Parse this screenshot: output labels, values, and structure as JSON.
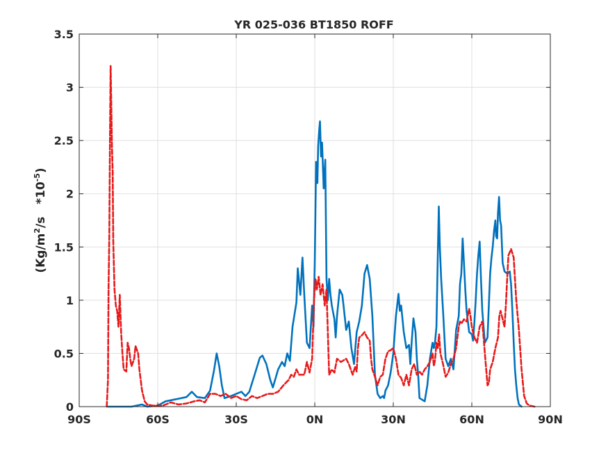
{
  "chart_data": {
    "type": "line",
    "title": "YR 025-036 BT1850 ROFF",
    "xlabel": "",
    "ylabel": "(Kg/m²/s   *10⁻⁵)",
    "ylabel_parts": {
      "a": "(Kg/m",
      "b": "2",
      "c": "/s   *10",
      "d": "-5",
      "e": ")"
    },
    "xlim": [
      -90,
      90
    ],
    "ylim": [
      0,
      3.5
    ],
    "xticks": [
      -90,
      -60,
      -30,
      0,
      30,
      60,
      90
    ],
    "xtick_labels": [
      "90S",
      "60S",
      "30S",
      "0N",
      "30N",
      "60N",
      "90N"
    ],
    "yticks": [
      0,
      0.5,
      1,
      1.5,
      2,
      2.5,
      3,
      3.5
    ],
    "ytick_labels": [
      "0",
      "0.5",
      "1",
      "1.5",
      "2",
      "2.5",
      "3",
      "3.5"
    ],
    "grid": true,
    "series": [
      {
        "color": "#0072BD",
        "dash": "solid",
        "points": [
          [
            -79,
            0
          ],
          [
            -70,
            0
          ],
          [
            -66,
            0.02
          ],
          [
            -64,
            0
          ],
          [
            -60,
            0.01
          ],
          [
            -57,
            0.05
          ],
          [
            -53,
            0.07
          ],
          [
            -49,
            0.09
          ],
          [
            -47,
            0.14
          ],
          [
            -45,
            0.09
          ],
          [
            -42,
            0.08
          ],
          [
            -40,
            0.15
          ],
          [
            -38.5,
            0.34
          ],
          [
            -37.5,
            0.5
          ],
          [
            -36.5,
            0.38
          ],
          [
            -35.5,
            0.2
          ],
          [
            -34.5,
            0.08
          ],
          [
            -32,
            0.1
          ],
          [
            -30,
            0.12
          ],
          [
            -28,
            0.14
          ],
          [
            -26.5,
            0.1
          ],
          [
            -25,
            0.14
          ],
          [
            -23,
            0.3
          ],
          [
            -21,
            0.46
          ],
          [
            -20,
            0.48
          ],
          [
            -18.5,
            0.4
          ],
          [
            -17,
            0.25
          ],
          [
            -16,
            0.18
          ],
          [
            -14,
            0.35
          ],
          [
            -12.5,
            0.42
          ],
          [
            -11.5,
            0.38
          ],
          [
            -10.5,
            0.5
          ],
          [
            -9.5,
            0.43
          ],
          [
            -8.5,
            0.75
          ],
          [
            -7,
            0.98
          ],
          [
            -6.5,
            1.3
          ],
          [
            -5.5,
            1.05
          ],
          [
            -4.7,
            1.4
          ],
          [
            -4,
            1.05
          ],
          [
            -3,
            0.6
          ],
          [
            -2,
            0.55
          ],
          [
            -1,
            0.95
          ],
          [
            -0.5,
            0.75
          ],
          [
            0,
            1.35
          ],
          [
            0.5,
            2.3
          ],
          [
            1,
            2.1
          ],
          [
            1.3,
            2.45
          ],
          [
            1.7,
            2.6
          ],
          [
            2,
            2.68
          ],
          [
            2.4,
            2.35
          ],
          [
            2.8,
            2.48
          ],
          [
            3.4,
            2.05
          ],
          [
            4,
            2.32
          ],
          [
            4.5,
            1.2
          ],
          [
            5,
            1.0
          ],
          [
            5.5,
            1.2
          ],
          [
            6,
            1.05
          ],
          [
            6.5,
            0.95
          ],
          [
            7.5,
            0.82
          ],
          [
            8,
            0.65
          ],
          [
            8.5,
            0.85
          ],
          [
            9.5,
            1.1
          ],
          [
            10.5,
            1.05
          ],
          [
            11,
            0.95
          ],
          [
            12,
            0.72
          ],
          [
            13,
            0.8
          ],
          [
            14,
            0.55
          ],
          [
            15,
            0.4
          ],
          [
            16,
            0.7
          ],
          [
            17,
            0.8
          ],
          [
            18,
            0.95
          ],
          [
            19,
            1.25
          ],
          [
            20,
            1.33
          ],
          [
            21,
            1.2
          ],
          [
            22,
            0.85
          ],
          [
            23,
            0.3
          ],
          [
            24,
            0.12
          ],
          [
            25,
            0.08
          ],
          [
            26,
            0.1
          ],
          [
            26.5,
            0.08
          ],
          [
            27,
            0.15
          ],
          [
            28,
            0.2
          ],
          [
            29,
            0.32
          ],
          [
            30,
            0.5
          ],
          [
            31,
            0.85
          ],
          [
            32,
            1.06
          ],
          [
            32.5,
            0.9
          ],
          [
            33,
            0.95
          ],
          [
            34,
            0.7
          ],
          [
            35,
            0.55
          ],
          [
            36,
            0.58
          ],
          [
            36.5,
            0.4
          ],
          [
            37,
            0.6
          ],
          [
            37.7,
            0.83
          ],
          [
            38.5,
            0.7
          ],
          [
            39,
            0.45
          ],
          [
            39.5,
            0.3
          ],
          [
            40,
            0.08
          ],
          [
            42,
            0.05
          ],
          [
            43,
            0.2
          ],
          [
            44,
            0.45
          ],
          [
            45,
            0.6
          ],
          [
            45.5,
            0.55
          ],
          [
            46,
            0.62
          ],
          [
            46.5,
            0.75
          ],
          [
            47,
            1.4
          ],
          [
            47.4,
            1.88
          ],
          [
            47.8,
            1.5
          ],
          [
            48.3,
            1.2
          ],
          [
            49,
            0.9
          ],
          [
            50,
            0.45
          ],
          [
            51,
            0.38
          ],
          [
            52,
            0.45
          ],
          [
            53,
            0.35
          ],
          [
            54,
            0.72
          ],
          [
            55,
            0.85
          ],
          [
            55.5,
            1.15
          ],
          [
            56,
            1.25
          ],
          [
            56.5,
            1.58
          ],
          [
            57,
            1.35
          ],
          [
            57.5,
            1.1
          ],
          [
            58,
            0.9
          ],
          [
            59,
            0.7
          ],
          [
            60,
            0.68
          ],
          [
            60.5,
            0.62
          ],
          [
            61,
            0.8
          ],
          [
            61.5,
            1.0
          ],
          [
            62,
            1.25
          ],
          [
            62.5,
            1.42
          ],
          [
            63,
            1.55
          ],
          [
            63.5,
            1.2
          ],
          [
            64,
            0.9
          ],
          [
            65,
            0.6
          ],
          [
            66,
            0.65
          ],
          [
            66.5,
            0.95
          ],
          [
            67,
            1.25
          ],
          [
            67.5,
            1.4
          ],
          [
            68,
            1.5
          ],
          [
            68.5,
            1.65
          ],
          [
            69,
            1.75
          ],
          [
            69.3,
            1.6
          ],
          [
            69.7,
            1.58
          ],
          [
            70,
            1.82
          ],
          [
            70.4,
            1.97
          ],
          [
            70.8,
            1.75
          ],
          [
            71.2,
            1.7
          ],
          [
            71.8,
            1.35
          ],
          [
            72.5,
            1.27
          ],
          [
            73.5,
            1.25
          ],
          [
            74.5,
            1.27
          ],
          [
            75,
            1.15
          ],
          [
            75.5,
            0.9
          ],
          [
            76,
            0.6
          ],
          [
            76.5,
            0.35
          ],
          [
            77,
            0.2
          ],
          [
            77.5,
            0.08
          ],
          [
            78,
            0.02
          ],
          [
            79,
            0
          ]
        ]
      },
      {
        "color": "#E61A1A",
        "dash": "dashed",
        "points": [
          [
            -79.5,
            0
          ],
          [
            -79,
            0.25
          ],
          [
            -78.8,
            1.1
          ],
          [
            -78.5,
            1.6
          ],
          [
            -78.2,
            2.6
          ],
          [
            -78,
            3.2
          ],
          [
            -77.8,
            2.9
          ],
          [
            -77.5,
            2.45
          ],
          [
            -77.2,
            2.2
          ],
          [
            -77,
            1.55
          ],
          [
            -76.5,
            1.1
          ],
          [
            -76,
            0.95
          ],
          [
            -75.5,
            0.9
          ],
          [
            -75,
            0.75
          ],
          [
            -74.5,
            1.05
          ],
          [
            -74,
            0.7
          ],
          [
            -73.5,
            0.5
          ],
          [
            -73,
            0.35
          ],
          [
            -72,
            0.33
          ],
          [
            -71.5,
            0.6
          ],
          [
            -71,
            0.55
          ],
          [
            -70.5,
            0.45
          ],
          [
            -70,
            0.38
          ],
          [
            -69,
            0.45
          ],
          [
            -68.5,
            0.57
          ],
          [
            -67.5,
            0.5
          ],
          [
            -67,
            0.35
          ],
          [
            -66,
            0.15
          ],
          [
            -65,
            0.05
          ],
          [
            -64,
            0.02
          ],
          [
            -62,
            0.01
          ],
          [
            -58,
            0.01
          ],
          [
            -55,
            0.04
          ],
          [
            -52,
            0.02
          ],
          [
            -49,
            0.03
          ],
          [
            -46,
            0.05
          ],
          [
            -44,
            0.06
          ],
          [
            -42,
            0.04
          ],
          [
            -40,
            0.12
          ],
          [
            -38,
            0.12
          ],
          [
            -36,
            0.1
          ],
          [
            -34,
            0.12
          ],
          [
            -32,
            0.08
          ],
          [
            -30,
            0.1
          ],
          [
            -28,
            0.07
          ],
          [
            -26,
            0.06
          ],
          [
            -24,
            0.1
          ],
          [
            -22,
            0.08
          ],
          [
            -20,
            0.1
          ],
          [
            -18,
            0.12
          ],
          [
            -16,
            0.12
          ],
          [
            -14,
            0.14
          ],
          [
            -12,
            0.2
          ],
          [
            -10,
            0.25
          ],
          [
            -9,
            0.3
          ],
          [
            -8,
            0.28
          ],
          [
            -7,
            0.35
          ],
          [
            -6,
            0.3
          ],
          [
            -4,
            0.3
          ],
          [
            -3,
            0.42
          ],
          [
            -2,
            0.32
          ],
          [
            -1,
            0.45
          ],
          [
            -0.3,
            1.0
          ],
          [
            0.3,
            1.2
          ],
          [
            0.8,
            1.1
          ],
          [
            1.5,
            1.22
          ],
          [
            2.2,
            1.05
          ],
          [
            3,
            1.15
          ],
          [
            3.8,
            0.95
          ],
          [
            4.5,
            1.1
          ],
          [
            5,
            0.7
          ],
          [
            5.5,
            0.3
          ],
          [
            6.5,
            0.35
          ],
          [
            7.5,
            0.32
          ],
          [
            8.5,
            0.45
          ],
          [
            10,
            0.42
          ],
          [
            12,
            0.45
          ],
          [
            13,
            0.4
          ],
          [
            14.5,
            0.3
          ],
          [
            15.5,
            0.38
          ],
          [
            16,
            0.33
          ],
          [
            16.5,
            0.55
          ],
          [
            17,
            0.65
          ],
          [
            18,
            0.67
          ],
          [
            19,
            0.7
          ],
          [
            20,
            0.65
          ],
          [
            21,
            0.62
          ],
          [
            21.5,
            0.45
          ],
          [
            22,
            0.35
          ],
          [
            23,
            0.28
          ],
          [
            24,
            0.2
          ],
          [
            25,
            0.28
          ],
          [
            26,
            0.3
          ],
          [
            27,
            0.45
          ],
          [
            28,
            0.52
          ],
          [
            29,
            0.53
          ],
          [
            30,
            0.55
          ],
          [
            31,
            0.45
          ],
          [
            32,
            0.3
          ],
          [
            33,
            0.27
          ],
          [
            34,
            0.2
          ],
          [
            35,
            0.3
          ],
          [
            36,
            0.2
          ],
          [
            37,
            0.35
          ],
          [
            38,
            0.4
          ],
          [
            39,
            0.3
          ],
          [
            40,
            0.33
          ],
          [
            41,
            0.3
          ],
          [
            42,
            0.35
          ],
          [
            43,
            0.38
          ],
          [
            44,
            0.42
          ],
          [
            45,
            0.5
          ],
          [
            45.5,
            0.38
          ],
          [
            46,
            0.45
          ],
          [
            46.5,
            0.6
          ],
          [
            47,
            0.55
          ],
          [
            47.5,
            0.68
          ],
          [
            48,
            0.5
          ],
          [
            49,
            0.4
          ],
          [
            50,
            0.28
          ],
          [
            51,
            0.32
          ],
          [
            52,
            0.4
          ],
          [
            53,
            0.45
          ],
          [
            54,
            0.55
          ],
          [
            55,
            0.75
          ],
          [
            55.5,
            0.8
          ],
          [
            56,
            0.78
          ],
          [
            57,
            0.82
          ],
          [
            58,
            0.8
          ],
          [
            59,
            0.92
          ],
          [
            59.5,
            0.85
          ],
          [
            60,
            0.75
          ],
          [
            61,
            0.65
          ],
          [
            62,
            0.6
          ],
          [
            63,
            0.75
          ],
          [
            64,
            0.8
          ],
          [
            65,
            0.5
          ],
          [
            66,
            0.2
          ],
          [
            66.5,
            0.22
          ],
          [
            67,
            0.35
          ],
          [
            68,
            0.42
          ],
          [
            69,
            0.55
          ],
          [
            70,
            0.65
          ],
          [
            70.5,
            0.85
          ],
          [
            71,
            0.9
          ],
          [
            72,
            0.8
          ],
          [
            72.5,
            0.75
          ],
          [
            73,
            0.95
          ],
          [
            73.5,
            1.2
          ],
          [
            74,
            1.42
          ],
          [
            74.5,
            1.45
          ],
          [
            75,
            1.48
          ],
          [
            76,
            1.4
          ],
          [
            76.5,
            1.2
          ],
          [
            77,
            1.0
          ],
          [
            78,
            0.72
          ],
          [
            79,
            0.35
          ],
          [
            80,
            0.1
          ],
          [
            81,
            0.03
          ],
          [
            82,
            0.01
          ],
          [
            84,
            0
          ]
        ]
      }
    ]
  }
}
